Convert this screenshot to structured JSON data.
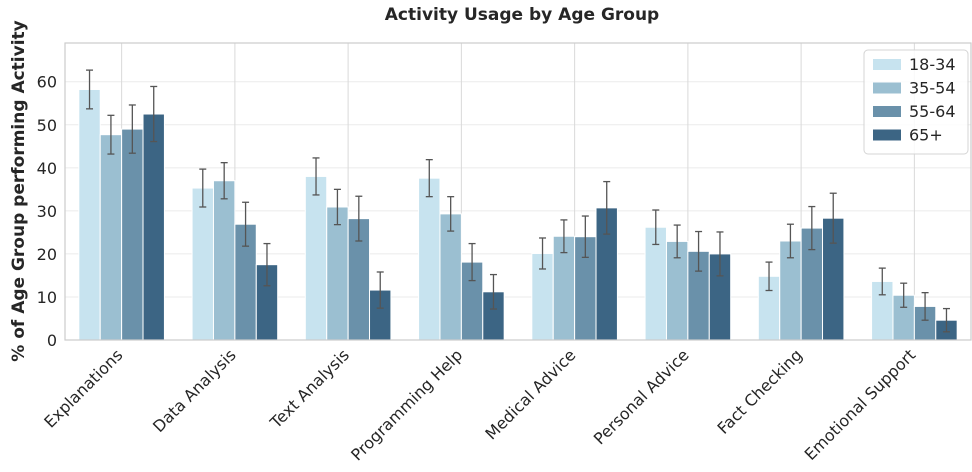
{
  "chart_data": {
    "type": "bar",
    "title": "Activity Usage by Age Group",
    "xlabel": "",
    "ylabel": "% of Age Group performing Activity",
    "ylim": [
      0,
      69
    ],
    "yticks": [
      0,
      10,
      20,
      30,
      40,
      50,
      60
    ],
    "categories": [
      "Explanations",
      "Data Analysis",
      "Text Analysis",
      "Programming Help",
      "Medical Advice",
      "Personal Advice",
      "Fact Checking",
      "Emotional Support"
    ],
    "series": [
      {
        "name": "18-34",
        "color": "#c7e3ef",
        "values": [
          58.2,
          35.3,
          38.0,
          37.6,
          20.1,
          26.2,
          14.8,
          13.6
        ],
        "errors": [
          4.5,
          4.4,
          4.3,
          4.3,
          3.6,
          4.0,
          3.3,
          3.1
        ]
      },
      {
        "name": "35-54",
        "color": "#9bbfd1",
        "values": [
          47.7,
          37.0,
          30.9,
          29.3,
          24.1,
          22.9,
          23.0,
          10.4
        ],
        "errors": [
          4.5,
          4.2,
          4.1,
          4.0,
          3.8,
          3.8,
          3.9,
          2.8
        ]
      },
      {
        "name": "55-64",
        "color": "#6a91aa",
        "values": [
          49.0,
          26.9,
          28.2,
          18.1,
          24.0,
          20.6,
          26.0,
          7.8
        ],
        "errors": [
          5.6,
          5.1,
          5.2,
          4.3,
          4.8,
          4.6,
          5.0,
          3.2
        ]
      },
      {
        "name": "65+",
        "color": "#3c6584",
        "values": [
          52.5,
          17.5,
          11.6,
          11.2,
          30.7,
          20.0,
          28.3,
          4.6
        ],
        "errors": [
          6.4,
          4.9,
          4.2,
          4.0,
          6.1,
          5.1,
          5.8,
          2.7
        ]
      }
    ],
    "grid": true,
    "legend_position": "top-right"
  }
}
